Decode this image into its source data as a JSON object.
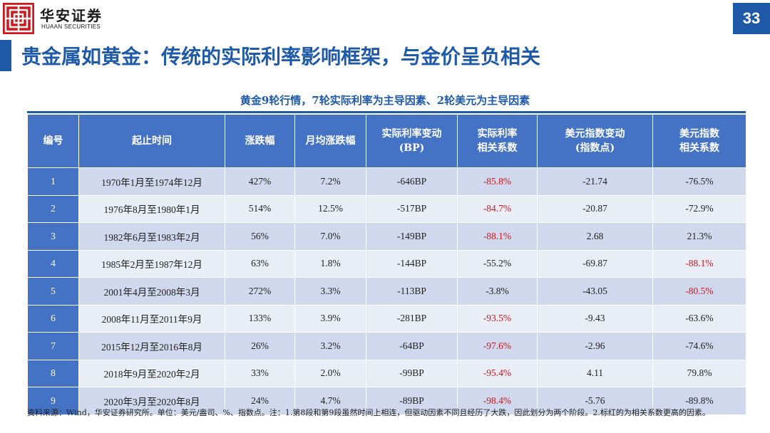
{
  "brand": {
    "name_cn": "华安证券",
    "name_en": "HUAAN SECURITIES",
    "color": "#d0161a"
  },
  "page_number": "33",
  "title": "贵金属如黄金：传统的实际利率影响框架，与金价呈负相关",
  "caption": "黄金9轮行情，7轮实际利率为主导因素、2轮美元为主导因素",
  "table": {
    "headers": [
      [
        "编号"
      ],
      [
        "起止时间"
      ],
      [
        "涨跌幅"
      ],
      [
        "月均涨跌幅"
      ],
      [
        "实际利率变动",
        "(BP)"
      ],
      [
        "实际利率",
        "相关系数"
      ],
      [
        "美元指数变动",
        "(指数点)"
      ],
      [
        "美元指数",
        "相关系数"
      ]
    ],
    "rows": [
      {
        "no": "1",
        "period": "1970年1月至1974年12月",
        "change": "427%",
        "monthly": "7.2%",
        "rate_bp": "-646BP",
        "rate_corr": "-85.8%",
        "usd_pts": "-21.74",
        "usd_corr": "-76.5%",
        "hl": "rate"
      },
      {
        "no": "2",
        "period": "1976年8月至1980年1月",
        "change": "514%",
        "monthly": "12.5%",
        "rate_bp": "-517BP",
        "rate_corr": "-84.7%",
        "usd_pts": "-20.87",
        "usd_corr": "-72.9%",
        "hl": "rate"
      },
      {
        "no": "3",
        "period": "1982年6月至1983年2月",
        "change": "56%",
        "monthly": "7.0%",
        "rate_bp": "-149BP",
        "rate_corr": "-88.1%",
        "usd_pts": "2.68",
        "usd_corr": "21.3%",
        "hl": "rate"
      },
      {
        "no": "4",
        "period": "1985年2月至1987年12月",
        "change": "63%",
        "monthly": "1.8%",
        "rate_bp": "-144BP",
        "rate_corr": "-55.2%",
        "usd_pts": "-69.87",
        "usd_corr": "-88.1%",
        "hl": "usd"
      },
      {
        "no": "5",
        "period": "2001年4月至2008年3月",
        "change": "272%",
        "monthly": "3.3%",
        "rate_bp": "-113BP",
        "rate_corr": "-3.8%",
        "usd_pts": "-43.05",
        "usd_corr": "-80.5%",
        "hl": "usd"
      },
      {
        "no": "6",
        "period": "2008年11月至2011年9月",
        "change": "133%",
        "monthly": "3.9%",
        "rate_bp": "-281BP",
        "rate_corr": "-93.5%",
        "usd_pts": "-9.43",
        "usd_corr": "-63.6%",
        "hl": "rate"
      },
      {
        "no": "7",
        "period": "2015年12月至2016年8月",
        "change": "26%",
        "monthly": "3.2%",
        "rate_bp": "-64BP",
        "rate_corr": "-97.6%",
        "usd_pts": "-2.96",
        "usd_corr": "-74.6%",
        "hl": "rate"
      },
      {
        "no": "8",
        "period": "2018年9月至2020年2月",
        "change": "33%",
        "monthly": "2.0%",
        "rate_bp": "-99BP",
        "rate_corr": "-95.4%",
        "usd_pts": "4.11",
        "usd_corr": "79.8%",
        "hl": "rate"
      },
      {
        "no": "9",
        "period": "2020年3月至2020年8月",
        "change": "24%",
        "monthly": "4.7%",
        "rate_bp": "-89BP",
        "rate_corr": "-98.4%",
        "usd_pts": "-5.76",
        "usd_corr": "-89.8%",
        "hl": "rate"
      }
    ]
  },
  "note": "资料来源：Wind，华安证券研究所。单位：美元/盎司、%、指数点。注：1.第8段和第9段虽然时间上相连，但驱动因素不同且经历了大跌，因此划分为两个阶段。2.标红的为相关系数更高的因素。"
}
